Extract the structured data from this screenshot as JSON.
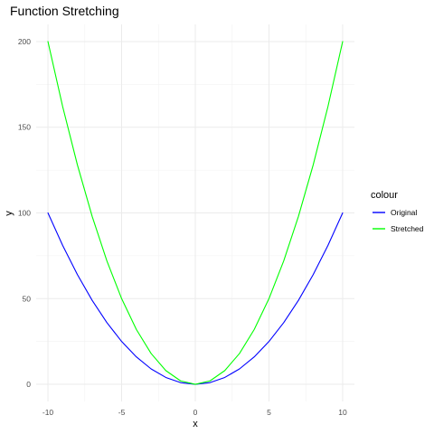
{
  "chart_data": {
    "type": "line",
    "title": "Function Stretching",
    "xlabel": "x",
    "ylabel": "y",
    "xlim": [
      -10.8,
      10.8
    ],
    "ylim": [
      -10,
      210
    ],
    "x_ticks": [
      -10,
      -5,
      0,
      5,
      10
    ],
    "y_ticks": [
      0,
      50,
      100,
      150,
      200
    ],
    "x_tick_labels": [
      "-10",
      "-5",
      "0",
      "5",
      "10"
    ],
    "y_tick_labels": [
      "0",
      "50",
      "100",
      "150",
      "200"
    ],
    "grid": true,
    "legend": {
      "title": "colour",
      "position": "right"
    },
    "series": [
      {
        "name": "Original",
        "color": "#0000ff",
        "x": [
          -10,
          -9,
          -8,
          -7,
          -6,
          -5,
          -4,
          -3,
          -2,
          -1,
          0,
          1,
          2,
          3,
          4,
          5,
          6,
          7,
          8,
          9,
          10
        ],
        "y": [
          100,
          81,
          64,
          49,
          36,
          25,
          16,
          9,
          4,
          1,
          0,
          1,
          4,
          9,
          16,
          25,
          36,
          49,
          64,
          81,
          100
        ]
      },
      {
        "name": "Stretched",
        "color": "#00ff00",
        "x": [
          -10,
          -9,
          -8,
          -7,
          -6,
          -5,
          -4,
          -3,
          -2,
          -1,
          0,
          1,
          2,
          3,
          4,
          5,
          6,
          7,
          8,
          9,
          10
        ],
        "y": [
          200,
          162,
          128,
          98,
          72,
          50,
          32,
          18,
          8,
          2,
          0,
          2,
          8,
          18,
          32,
          50,
          72,
          98,
          128,
          162,
          200
        ]
      }
    ]
  }
}
